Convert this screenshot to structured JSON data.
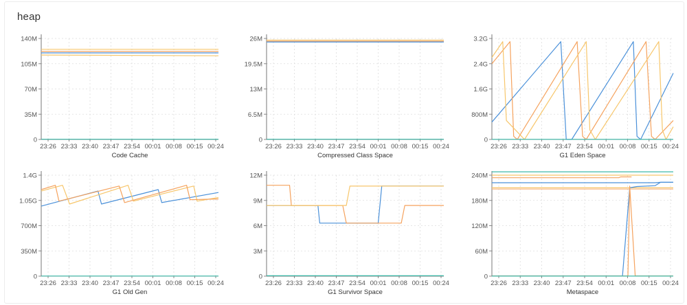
{
  "panel": {
    "title": "heap"
  },
  "colors": {
    "blue": "#4a90d9",
    "orange": "#f5a25d",
    "gold": "#f7c66b",
    "green": "#3cb8a8",
    "peach": "#f7b27a",
    "grid": "#dddddd"
  },
  "chart_data": [
    {
      "type": "line",
      "title": "Code Cache",
      "x_ticks": [
        "23:26",
        "23:33",
        "23:40",
        "23:47",
        "23:54",
        "00:01",
        "00:08",
        "00:15",
        "00:24"
      ],
      "y_ticks": [
        "0",
        "35M",
        "70M",
        "105M",
        "140M"
      ],
      "ylim": [
        0,
        140
      ],
      "series": [
        {
          "color": "#f7c66b",
          "points": [
            [
              0,
              125
            ],
            [
              1,
              125
            ]
          ]
        },
        {
          "color": "#f5a25d",
          "points": [
            [
              0,
              122
            ],
            [
              1,
              122
            ]
          ]
        },
        {
          "color": "#4a90d9",
          "points": [
            [
              0,
              120
            ],
            [
              1,
              120
            ]
          ]
        },
        {
          "color": "#f7c66b",
          "points": [
            [
              0,
              117
            ],
            [
              1,
              116
            ]
          ]
        },
        {
          "color": "#3cb8a8",
          "points": [
            [
              0,
              0.3
            ],
            [
              1,
              0.3
            ]
          ]
        }
      ]
    },
    {
      "type": "line",
      "title": "Compressed Class Space",
      "x_ticks": [
        "23:26",
        "23:33",
        "23:40",
        "23:47",
        "23:54",
        "00:01",
        "00:08",
        "00:15",
        "00:24"
      ],
      "y_ticks": [
        "0",
        "6.5M",
        "13M",
        "19.5M",
        "26M"
      ],
      "ylim": [
        0,
        26
      ],
      "series": [
        {
          "color": "#f7c66b",
          "points": [
            [
              0,
              25.6
            ],
            [
              1,
              25.6
            ]
          ]
        },
        {
          "color": "#f5a25d",
          "points": [
            [
              0,
              25.3
            ],
            [
              1,
              25.3
            ]
          ]
        },
        {
          "color": "#4a90d9",
          "points": [
            [
              0,
              25.1
            ],
            [
              1,
              25.1
            ]
          ]
        },
        {
          "color": "#3cb8a8",
          "points": [
            [
              0,
              0.05
            ],
            [
              1,
              0.05
            ]
          ]
        }
      ]
    },
    {
      "type": "line",
      "title": "G1 Eden Space",
      "x_ticks": [
        "23:26",
        "23:33",
        "23:40",
        "23:47",
        "23:54",
        "00:01",
        "00:08",
        "00:15",
        "00:24"
      ],
      "y_ticks": [
        "0",
        "800M",
        "1.6G",
        "2.4G",
        "3.2G"
      ],
      "ylim": [
        0,
        3.2
      ],
      "series": [
        {
          "color": "#4a90d9",
          "points": [
            [
              0,
              0.55
            ],
            [
              0.38,
              3.1
            ],
            [
              0.41,
              0
            ],
            [
              0.44,
              0
            ],
            [
              0.78,
              3.1
            ],
            [
              0.8,
              0.1
            ],
            [
              0.82,
              0
            ],
            [
              1,
              2.1
            ]
          ]
        },
        {
          "color": "#f5a25d",
          "points": [
            [
              0,
              2.4
            ],
            [
              0.1,
              3.1
            ],
            [
              0.12,
              0.1
            ],
            [
              0.14,
              0
            ],
            [
              0.47,
              3.1
            ],
            [
              0.5,
              0.1
            ],
            [
              0.52,
              0
            ],
            [
              0.85,
              3.1
            ],
            [
              0.88,
              0.1
            ],
            [
              0.9,
              0
            ],
            [
              1,
              0.6
            ]
          ]
        },
        {
          "color": "#f7c66b",
          "points": [
            [
              0,
              2.6
            ],
            [
              0.06,
              3.1
            ],
            [
              0.08,
              0.6
            ],
            [
              0.18,
              0
            ],
            [
              0.52,
              3.1
            ],
            [
              0.54,
              0.3
            ],
            [
              0.57,
              0
            ],
            [
              0.92,
              3.1
            ],
            [
              0.94,
              0.3
            ],
            [
              0.96,
              0
            ],
            [
              1,
              0.4
            ]
          ]
        },
        {
          "color": "#3cb8a8",
          "points": [
            [
              0,
              0.005
            ],
            [
              1,
              0.005
            ]
          ]
        }
      ]
    },
    {
      "type": "line",
      "title": "G1 Old Gen",
      "x_ticks": [
        "23:26",
        "23:33",
        "23:40",
        "23:47",
        "23:54",
        "00:01",
        "00:08",
        "00:15",
        "00:24"
      ],
      "y_ticks": [
        "0",
        "350M",
        "700M",
        "1.05G",
        "1.4G"
      ],
      "ylim": [
        0,
        1.4
      ],
      "series": [
        {
          "color": "#4a90d9",
          "points": [
            [
              0,
              0.97
            ],
            [
              0.32,
              1.18
            ],
            [
              0.34,
              1.0
            ],
            [
              0.66,
              1.2
            ],
            [
              0.68,
              1.02
            ],
            [
              1,
              1.16
            ]
          ]
        },
        {
          "color": "#f7c66b",
          "points": [
            [
              0,
              1.18
            ],
            [
              0.12,
              1.26
            ],
            [
              0.16,
              1.0
            ],
            [
              0.49,
              1.26
            ],
            [
              0.52,
              1.04
            ],
            [
              0.86,
              1.25
            ],
            [
              0.88,
              1.04
            ],
            [
              1,
              1.09
            ]
          ]
        },
        {
          "color": "#f5a25d",
          "points": [
            [
              0,
              1.2
            ],
            [
              0.08,
              1.26
            ],
            [
              0.1,
              1.04
            ],
            [
              0.44,
              1.25
            ],
            [
              0.47,
              1.02
            ],
            [
              0.82,
              1.26
            ],
            [
              0.84,
              1.06
            ],
            [
              1,
              1.07
            ]
          ]
        },
        {
          "color": "#3cb8a8",
          "points": [
            [
              0,
              0.002
            ],
            [
              1,
              0.002
            ]
          ]
        }
      ]
    },
    {
      "type": "line",
      "title": "G1 Survivor Space",
      "x_ticks": [
        "23:26",
        "23:33",
        "23:40",
        "23:47",
        "23:54",
        "00:01",
        "00:08",
        "00:15",
        "00:24"
      ],
      "y_ticks": [
        "0",
        "3M",
        "6M",
        "9M",
        "12M"
      ],
      "ylim": [
        0,
        12
      ],
      "series": [
        {
          "color": "#4a90d9",
          "points": [
            [
              0,
              8.4
            ],
            [
              0.29,
              8.4
            ],
            [
              0.3,
              6.3
            ],
            [
              0.63,
              6.3
            ],
            [
              0.65,
              10.7
            ],
            [
              1,
              10.7
            ]
          ]
        },
        {
          "color": "#f5a25d",
          "points": [
            [
              0,
              10.8
            ],
            [
              0.13,
              10.8
            ],
            [
              0.14,
              8.4
            ],
            [
              0.43,
              8.4
            ],
            [
              0.45,
              6.3
            ],
            [
              0.76,
              6.3
            ],
            [
              0.78,
              8.4
            ],
            [
              1,
              8.4
            ]
          ]
        },
        {
          "color": "#f7c66b",
          "points": [
            [
              0,
              8.4
            ],
            [
              0.45,
              8.4
            ],
            [
              0.47,
              10.7
            ],
            [
              1,
              10.7
            ]
          ]
        },
        {
          "color": "#3cb8a8",
          "points": [
            [
              0,
              0.05
            ],
            [
              1,
              0.05
            ]
          ]
        }
      ]
    },
    {
      "type": "line",
      "title": "Metaspace",
      "x_ticks": [
        "23:26",
        "23:33",
        "23:40",
        "23:47",
        "23:54",
        "00:01",
        "00:08",
        "00:15",
        "00:24"
      ],
      "y_ticks": [
        "0",
        "60M",
        "120M",
        "180M",
        "240M"
      ],
      "ylim": [
        0,
        240
      ],
      "series": [
        {
          "color": "#3cb8a8",
          "points": [
            [
              0,
              248
            ],
            [
              1,
              248
            ]
          ]
        },
        {
          "color": "#f7c66b",
          "points": [
            [
              0,
              240
            ],
            [
              1,
              240
            ]
          ]
        },
        {
          "color": "#f5a25d",
          "points": [
            [
              0,
              234
            ],
            [
              0.7,
              234
            ],
            [
              0.71,
              236
            ],
            [
              0.77,
              236
            ]
          ]
        },
        {
          "color": "#4a90d9",
          "points": [
            [
              0,
              222
            ],
            [
              0.9,
              222
            ],
            [
              0.93,
              223
            ],
            [
              1,
              223
            ]
          ]
        },
        {
          "color": "#f7c66b",
          "points": [
            [
              0,
              210
            ],
            [
              1,
              210
            ]
          ]
        },
        {
          "color": "#f7b27a",
          "points": [
            [
              0,
              207
            ],
            [
              1,
              207
            ]
          ]
        },
        {
          "color": "#4a90d9",
          "points": [
            [
              0,
              0.5
            ],
            [
              0.72,
              0.5
            ],
            [
              0.76,
              210
            ],
            [
              0.8,
              213
            ],
            [
              0.9,
              215
            ],
            [
              0.93,
              223
            ],
            [
              1,
              223
            ]
          ]
        },
        {
          "color": "#f5a25d",
          "points": [
            [
              0,
              0.5
            ],
            [
              0.75,
              0.5
            ],
            [
              0.76,
              214
            ],
            [
              0.79,
              0.5
            ],
            [
              1,
              0.5
            ]
          ]
        },
        {
          "color": "#3cb8a8",
          "points": [
            [
              0,
              0.2
            ],
            [
              1,
              0.2
            ]
          ]
        }
      ]
    }
  ]
}
